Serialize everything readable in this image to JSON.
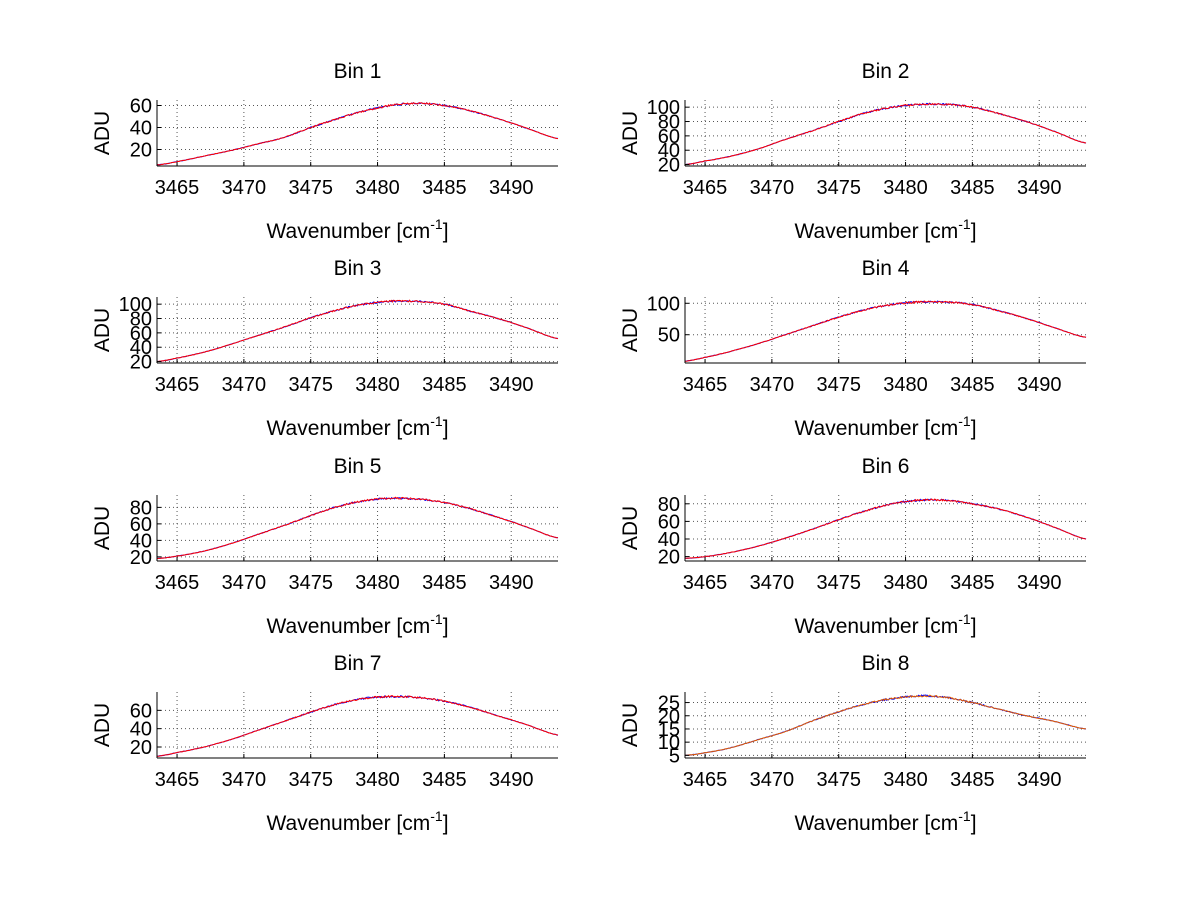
{
  "figure": {
    "x_tick_labels": [
      "3465",
      "3470",
      "3475",
      "3480",
      "3485",
      "3490"
    ],
    "xlabel": "Wavenumber [cm",
    "xlabel_sup": "-1",
    "xlabel_close": "]",
    "ylabel": "ADU"
  },
  "colors": {
    "series_blue": "#0000ff",
    "series_red": "#ff0000",
    "series_orange": "#e05a00",
    "axis": "#000000",
    "grid": "#555555"
  },
  "chart_data": [
    {
      "type": "line",
      "title": "Bin 1",
      "xlabel": "Wavenumber [cm-1]",
      "ylabel": "ADU",
      "xlim": [
        3463.5,
        3493.5
      ],
      "ylim": [
        5,
        65
      ],
      "xticks": [
        3465,
        3470,
        3475,
        3480,
        3485,
        3490
      ],
      "yticks": [
        20,
        40,
        60
      ],
      "grid": true,
      "series": [
        {
          "name": "blue",
          "x": [
            3463.5,
            3465,
            3467,
            3469,
            3471,
            3473,
            3475,
            3477,
            3479,
            3481,
            3483,
            3485,
            3487,
            3489,
            3491,
            3493.5
          ],
          "values": [
            6,
            9,
            14,
            19,
            25,
            31,
            40,
            48,
            55,
            60,
            62,
            60,
            55,
            48,
            40,
            30
          ]
        },
        {
          "name": "red",
          "x": [
            3463.5,
            3465,
            3467,
            3469,
            3471,
            3473,
            3475,
            3477,
            3479,
            3481,
            3483,
            3485,
            3487,
            3489,
            3491,
            3493.5
          ],
          "values": [
            6,
            9,
            14,
            19,
            25,
            31,
            40,
            48,
            55,
            60,
            62,
            60,
            55,
            48,
            40,
            30
          ]
        }
      ]
    },
    {
      "type": "line",
      "title": "Bin 2",
      "xlabel": "Wavenumber [cm-1]",
      "ylabel": "ADU",
      "xlim": [
        3463.5,
        3493.5
      ],
      "ylim": [
        18,
        110
      ],
      "xticks": [
        3465,
        3470,
        3475,
        3480,
        3485,
        3490
      ],
      "yticks": [
        20,
        40,
        60,
        80,
        100
      ],
      "grid": true,
      "series": [
        {
          "name": "blue",
          "x": [
            3463.5,
            3465,
            3467,
            3469,
            3471,
            3473,
            3475,
            3477,
            3479,
            3481,
            3483,
            3485,
            3487,
            3489,
            3491,
            3493.5
          ],
          "values": [
            20,
            25,
            32,
            42,
            55,
            67,
            80,
            92,
            100,
            104,
            104,
            100,
            91,
            80,
            67,
            50
          ]
        },
        {
          "name": "red",
          "x": [
            3463.5,
            3465,
            3467,
            3469,
            3471,
            3473,
            3475,
            3477,
            3479,
            3481,
            3483,
            3485,
            3487,
            3489,
            3491,
            3493.5
          ],
          "values": [
            20,
            25,
            32,
            42,
            55,
            67,
            80,
            92,
            100,
            104,
            104,
            100,
            91,
            80,
            67,
            50
          ]
        }
      ]
    },
    {
      "type": "line",
      "title": "Bin 3",
      "xlabel": "Wavenumber [cm-1]",
      "ylabel": "ADU",
      "xlim": [
        3463.5,
        3493.5
      ],
      "ylim": [
        18,
        110
      ],
      "xticks": [
        3465,
        3470,
        3475,
        3480,
        3485,
        3490
      ],
      "yticks": [
        20,
        40,
        60,
        80,
        100
      ],
      "grid": true,
      "series": [
        {
          "name": "blue",
          "x": [
            3463.5,
            3465,
            3467,
            3469,
            3471,
            3473,
            3475,
            3477,
            3479,
            3481,
            3483,
            3485,
            3487,
            3489,
            3491,
            3493.5
          ],
          "values": [
            20,
            25,
            33,
            44,
            56,
            68,
            81,
            92,
            100,
            104,
            104,
            100,
            90,
            80,
            68,
            52
          ]
        },
        {
          "name": "red",
          "x": [
            3463.5,
            3465,
            3467,
            3469,
            3471,
            3473,
            3475,
            3477,
            3479,
            3481,
            3483,
            3485,
            3487,
            3489,
            3491,
            3493.5
          ],
          "values": [
            20,
            25,
            33,
            44,
            56,
            68,
            81,
            92,
            100,
            104,
            104,
            100,
            90,
            80,
            68,
            52
          ]
        }
      ]
    },
    {
      "type": "line",
      "title": "Bin 4",
      "xlabel": "Wavenumber [cm-1]",
      "ylabel": "ADU",
      "xlim": [
        3463.5,
        3493.5
      ],
      "ylim": [
        5,
        110
      ],
      "xticks": [
        3465,
        3470,
        3475,
        3480,
        3485,
        3490
      ],
      "yticks": [
        50,
        100
      ],
      "grid": true,
      "series": [
        {
          "name": "blue",
          "x": [
            3463.5,
            3465,
            3467,
            3469,
            3471,
            3473,
            3475,
            3477,
            3479,
            3481,
            3483,
            3485,
            3487,
            3489,
            3491,
            3493.5
          ],
          "values": [
            8,
            14,
            24,
            36,
            50,
            64,
            78,
            90,
            98,
            102,
            102,
            98,
            88,
            76,
            62,
            46
          ]
        },
        {
          "name": "red",
          "x": [
            3463.5,
            3465,
            3467,
            3469,
            3471,
            3473,
            3475,
            3477,
            3479,
            3481,
            3483,
            3485,
            3487,
            3489,
            3491,
            3493.5
          ],
          "values": [
            8,
            14,
            24,
            36,
            50,
            64,
            78,
            90,
            98,
            102,
            102,
            98,
            88,
            76,
            62,
            46
          ]
        }
      ]
    },
    {
      "type": "line",
      "title": "Bin 5",
      "xlabel": "Wavenumber [cm-1]",
      "ylabel": "ADU",
      "xlim": [
        3463.5,
        3493.5
      ],
      "ylim": [
        15,
        95
      ],
      "xticks": [
        3465,
        3470,
        3475,
        3480,
        3485,
        3490
      ],
      "yticks": [
        20,
        40,
        60,
        80
      ],
      "grid": true,
      "series": [
        {
          "name": "blue",
          "x": [
            3463.5,
            3465,
            3467,
            3469,
            3471,
            3473,
            3475,
            3477,
            3479,
            3481,
            3483,
            3485,
            3487,
            3489,
            3491,
            3493.5
          ],
          "values": [
            18,
            21,
            27,
            36,
            47,
            58,
            70,
            81,
            88,
            91,
            90,
            86,
            78,
            68,
            57,
            43
          ]
        },
        {
          "name": "red",
          "x": [
            3463.5,
            3465,
            3467,
            3469,
            3471,
            3473,
            3475,
            3477,
            3479,
            3481,
            3483,
            3485,
            3487,
            3489,
            3491,
            3493.5
          ],
          "values": [
            18,
            21,
            27,
            36,
            47,
            58,
            70,
            81,
            88,
            91,
            90,
            86,
            78,
            68,
            57,
            43
          ]
        }
      ]
    },
    {
      "type": "line",
      "title": "Bin 6",
      "xlabel": "Wavenumber [cm-1]",
      "ylabel": "ADU",
      "xlim": [
        3463.5,
        3493.5
      ],
      "ylim": [
        15,
        90
      ],
      "xticks": [
        3465,
        3470,
        3475,
        3480,
        3485,
        3490
      ],
      "yticks": [
        20,
        40,
        60,
        80
      ],
      "grid": true,
      "series": [
        {
          "name": "blue",
          "x": [
            3463.5,
            3465,
            3467,
            3469,
            3471,
            3473,
            3475,
            3477,
            3479,
            3481,
            3483,
            3485,
            3487,
            3489,
            3491,
            3493.5
          ],
          "values": [
            18,
            20,
            25,
            32,
            41,
            51,
            62,
            72,
            80,
            84,
            84,
            80,
            74,
            65,
            54,
            40
          ]
        },
        {
          "name": "red",
          "x": [
            3463.5,
            3465,
            3467,
            3469,
            3471,
            3473,
            3475,
            3477,
            3479,
            3481,
            3483,
            3485,
            3487,
            3489,
            3491,
            3493.5
          ],
          "values": [
            18,
            20,
            25,
            32,
            41,
            51,
            62,
            72,
            80,
            84,
            84,
            80,
            74,
            65,
            54,
            40
          ]
        }
      ]
    },
    {
      "type": "line",
      "title": "Bin 7",
      "xlabel": "Wavenumber [cm-1]",
      "ylabel": "ADU",
      "xlim": [
        3463.5,
        3493.5
      ],
      "ylim": [
        8,
        80
      ],
      "xticks": [
        3465,
        3470,
        3475,
        3480,
        3485,
        3490
      ],
      "yticks": [
        20,
        40,
        60
      ],
      "grid": true,
      "series": [
        {
          "name": "blue",
          "x": [
            3463.5,
            3465,
            3467,
            3469,
            3471,
            3473,
            3475,
            3477,
            3479,
            3481,
            3483,
            3485,
            3487,
            3489,
            3491,
            3493.5
          ],
          "values": [
            10,
            14,
            20,
            28,
            38,
            48,
            58,
            67,
            73,
            75,
            74,
            70,
            63,
            54,
            45,
            33
          ]
        },
        {
          "name": "red",
          "x": [
            3463.5,
            3465,
            3467,
            3469,
            3471,
            3473,
            3475,
            3477,
            3479,
            3481,
            3483,
            3485,
            3487,
            3489,
            3491,
            3493.5
          ],
          "values": [
            10,
            14,
            20,
            28,
            38,
            48,
            58,
            67,
            73,
            75,
            74,
            70,
            63,
            54,
            45,
            33
          ]
        }
      ]
    },
    {
      "type": "line",
      "title": "Bin 8",
      "xlabel": "Wavenumber [cm-1]",
      "ylabel": "ADU",
      "xlim": [
        3463.5,
        3493.5
      ],
      "ylim": [
        4,
        29
      ],
      "xticks": [
        3465,
        3470,
        3475,
        3480,
        3485,
        3490
      ],
      "yticks": [
        5,
        10,
        15,
        20,
        25
      ],
      "grid": true,
      "series": [
        {
          "name": "blue",
          "x": [
            3463.5,
            3465,
            3467,
            3469,
            3471,
            3473,
            3475,
            3477,
            3479,
            3481,
            3483,
            3485,
            3487,
            3489,
            3491,
            3493.5
          ],
          "values": [
            5,
            6,
            8,
            11,
            14,
            18,
            21.5,
            24.5,
            26.5,
            27.5,
            27,
            25,
            22.5,
            20,
            18,
            15
          ]
        },
        {
          "name": "orange",
          "x": [
            3463.5,
            3465,
            3467,
            3469,
            3471,
            3473,
            3475,
            3477,
            3479,
            3481,
            3483,
            3485,
            3487,
            3489,
            3491,
            3493.5
          ],
          "values": [
            5,
            6,
            8,
            11,
            14,
            18,
            21.5,
            24.5,
            26.5,
            27.5,
            27,
            25,
            22.5,
            20,
            18,
            15
          ]
        }
      ]
    }
  ]
}
